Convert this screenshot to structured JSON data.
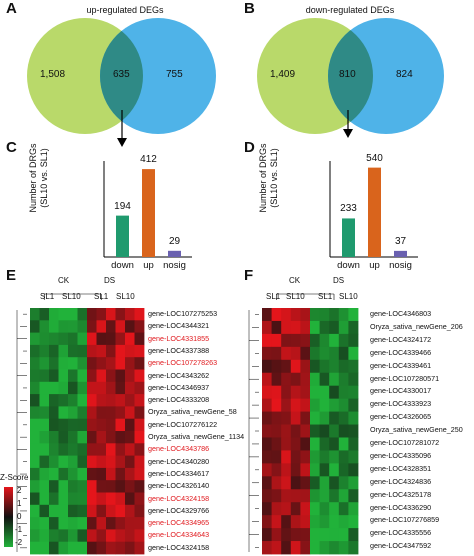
{
  "panels": {
    "A": {
      "letter": "A",
      "title": "up-regulated DEGs",
      "left_only": "1,508",
      "overlap": "635",
      "right_only": "755"
    },
    "B": {
      "letter": "B",
      "title": "down-regulated DEGs",
      "left_only": "1,409",
      "overlap": "810",
      "right_only": "824"
    },
    "C": {
      "letter": "C",
      "ylabel_line1": "Number of DRGs",
      "ylabel_line2": "(SL10 vs. SL1)"
    },
    "D": {
      "letter": "D",
      "ylabel_line1": "Number of DRGs",
      "ylabel_line2": "(SL10 vs. SL1)"
    },
    "E": {
      "letter": "E",
      "group_labels": [
        "CK",
        "DS"
      ],
      "sample_labels": [
        "SL1",
        "SL10"
      ],
      "genes": [
        {
          "name": "gene-LOC107275253",
          "color": "#111111"
        },
        {
          "name": "gene-LOC4344321",
          "color": "#111111"
        },
        {
          "name": "gene-LOC4331855",
          "color": "#e0191e"
        },
        {
          "name": "gene-LOC4337388",
          "color": "#111111"
        },
        {
          "name": "gene-LOC107278263",
          "color": "#e0191e"
        },
        {
          "name": "gene-LOC4343262",
          "color": "#111111"
        },
        {
          "name": "gene-LOC4346937",
          "color": "#111111"
        },
        {
          "name": "gene-LOC4333208",
          "color": "#111111"
        },
        {
          "name": "Oryza_sativa_newGene_58",
          "color": "#111111"
        },
        {
          "name": "gene-LOC107276122",
          "color": "#111111"
        },
        {
          "name": "Oryza_sativa_newGene_1134",
          "color": "#111111"
        },
        {
          "name": "gene-LOC4343786",
          "color": "#e0191e"
        },
        {
          "name": "gene-LOC4340280",
          "color": "#111111"
        },
        {
          "name": "gene-LOC4334617",
          "color": "#111111"
        },
        {
          "name": "gene-LOC4326140",
          "color": "#111111"
        },
        {
          "name": "gene-LOC4324158",
          "color": "#e0191e"
        },
        {
          "name": "gene-LOC4329766",
          "color": "#111111"
        },
        {
          "name": "gene-LOC4334965",
          "color": "#e0191e"
        },
        {
          "name": "gene-LOC4334643",
          "color": "#e0191e"
        },
        {
          "name": "gene-LOC4324158",
          "color": "#111111"
        }
      ]
    },
    "F": {
      "letter": "F",
      "group_labels": [
        "CK",
        "DS"
      ],
      "sample_labels": [
        "SL1",
        "SL10"
      ],
      "genes": [
        {
          "name": "gene-LOC4346803",
          "color": "#111111"
        },
        {
          "name": "Oryza_sativa_newGene_206",
          "color": "#111111"
        },
        {
          "name": "gene-LOC4324172",
          "color": "#111111"
        },
        {
          "name": "gene-LOC4339466",
          "color": "#111111"
        },
        {
          "name": "gene-LOC4339461",
          "color": "#111111"
        },
        {
          "name": "gene-LOC107280571",
          "color": "#111111"
        },
        {
          "name": "gene-LOC4330017",
          "color": "#111111"
        },
        {
          "name": "gene-LOC4333923",
          "color": "#111111"
        },
        {
          "name": "gene-LOC4326065",
          "color": "#111111"
        },
        {
          "name": "Oryza_sativa_newGene_250",
          "color": "#111111"
        },
        {
          "name": "gene-LOC107281072",
          "color": "#111111"
        },
        {
          "name": "gene-LOC4335096",
          "color": "#111111"
        },
        {
          "name": "gene-LOC4328351",
          "color": "#111111"
        },
        {
          "name": "gene-LOC4324836",
          "color": "#111111"
        },
        {
          "name": "gene-LOC4325178",
          "color": "#111111"
        },
        {
          "name": "gene-LOC4336290",
          "color": "#111111"
        },
        {
          "name": "gene-LOC107276859",
          "color": "#111111"
        },
        {
          "name": "gene-LOC4335556",
          "color": "#111111"
        },
        {
          "name": "gene-LOC4347592",
          "color": "#111111"
        }
      ]
    }
  },
  "legend": {
    "title": "Z-Score",
    "ticks": [
      "2",
      "1",
      "0",
      "-1",
      "-2"
    ]
  },
  "colors": {
    "venn_left": "#b9d96a",
    "venn_right": "#4fb3e8",
    "venn_overlap": "#2f8a86",
    "bar_down": "#1f9a6e",
    "bar_up": "#d9641c",
    "bar_nosig": "#6a61b0",
    "gene_highlight": "#e0191e"
  },
  "chart_data": [
    {
      "type": "bar",
      "categories": [
        "down",
        "up",
        "nosig"
      ],
      "values": [
        194,
        412,
        29
      ],
      "ylabel": "Number of DRGs (SL10 vs. SL1)",
      "ylim": [
        0,
        450
      ]
    },
    {
      "type": "bar",
      "categories": [
        "down",
        "up",
        "nosig"
      ],
      "values": [
        233,
        540,
        37
      ],
      "ylabel": "Number of DRGs (SL10 vs. SL1)",
      "ylim": [
        0,
        580
      ]
    }
  ]
}
